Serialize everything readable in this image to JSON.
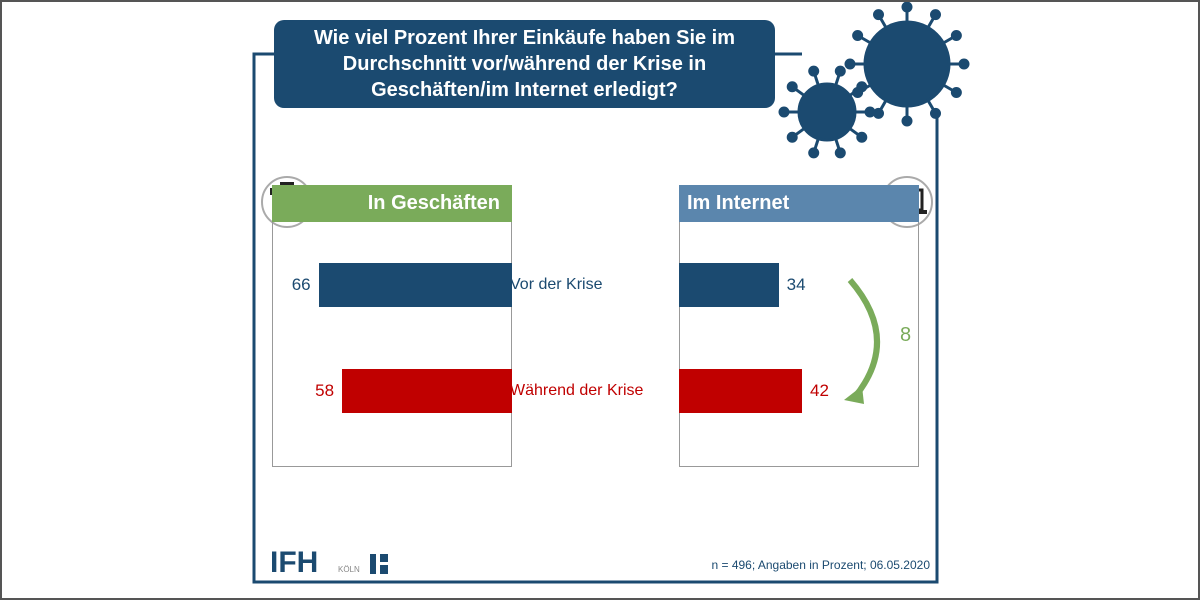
{
  "chart_data": {
    "type": "butterfly-bar",
    "title": "Wie viel Prozent Ihrer Einkäufe haben Sie im Durchschnitt vor/während der Krise in Geschäften/im Internet erledigt?",
    "categories": [
      "Vor der Krise",
      "Während der Krise"
    ],
    "category_colors": [
      "#1b4a70",
      "#c00000"
    ],
    "series": [
      {
        "name": "In Geschäften",
        "color": "#7aab5a",
        "values": [
          66,
          58
        ]
      },
      {
        "name": "Im Internet",
        "color": "#5b86ad",
        "values": [
          34,
          42
        ]
      }
    ],
    "change": {
      "value": 8,
      "color": "#7aab5a"
    },
    "footnote": "n = 496; Angaben in Prozent; 06.05.2020",
    "logo": {
      "name": "IFH",
      "city": "KÖLN"
    }
  }
}
